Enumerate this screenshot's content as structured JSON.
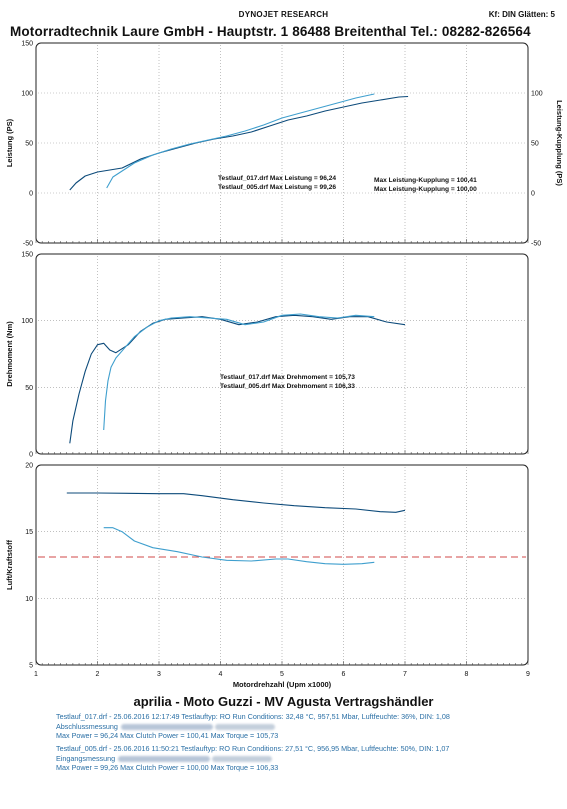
{
  "header": {
    "title": "DYNOJET RESEARCH",
    "right": "Kf: DIN  Glätten: 5",
    "company": "Motorradtechnik Laure GmbH - Hauptstr. 1  86488 Breitenthal  Tel.: 08282-826564"
  },
  "colors": {
    "run1": "#0c4a7a",
    "run2": "#3f9fce",
    "dashed": "#d24a4a",
    "grid": "#9a9a9a"
  },
  "chart_data": [
    {
      "type": "line",
      "ylabel": "Leistung (PS)",
      "ylabel_right": "Leistung-Kupplung (PS)",
      "ylim": [
        -50,
        150
      ],
      "ylim_right": [
        -50,
        150
      ],
      "yticks": [
        "-50",
        "0",
        "50",
        "100",
        "150"
      ],
      "yticks_right": [
        "-50",
        "0",
        "50",
        "100"
      ],
      "xlim": [
        1,
        9
      ],
      "annotations": [
        "Testlauf_017.drf Max Leistung = 96,24",
        "Testlauf_005.drf Max Leistung = 99,26",
        "Max Leistung-Kupplung = 100,41",
        "Max Leistung-Kupplung = 100,00"
      ],
      "series": [
        {
          "name": "Testlauf_017.drf",
          "x": [
            1.55,
            1.65,
            1.8,
            2.0,
            2.2,
            2.4,
            2.7,
            3.0,
            3.3,
            3.6,
            3.9,
            4.2,
            4.5,
            4.8,
            5.1,
            5.4,
            5.7,
            6.0,
            6.3,
            6.6,
            6.9,
            7.05
          ],
          "y": [
            3,
            10,
            17,
            21,
            23,
            25,
            34,
            40,
            45,
            50,
            54,
            57,
            61,
            67,
            73,
            77,
            82,
            86,
            90,
            93,
            96,
            96.5
          ]
        },
        {
          "name": "Testlauf_005.drf",
          "x": [
            2.15,
            2.25,
            2.4,
            2.6,
            2.9,
            3.2,
            3.5,
            3.8,
            4.1,
            4.4,
            4.7,
            5.0,
            5.3,
            5.6,
            5.9,
            6.2,
            6.5
          ],
          "y": [
            5,
            16,
            22,
            30,
            38,
            44,
            49,
            53,
            57,
            62,
            68,
            75,
            80,
            85,
            90,
            95,
            99
          ]
        }
      ]
    },
    {
      "type": "line",
      "ylabel": "Drehmoment (Nm)",
      "ylim": [
        0,
        150
      ],
      "yticks": [
        "0",
        "50",
        "100",
        "150"
      ],
      "xlim": [
        1,
        9
      ],
      "annotations": [
        "Testlauf_017.drf Max Drehmoment = 105,73",
        "Testlauf_005.drf Max Drehmoment = 106,33"
      ],
      "series": [
        {
          "name": "Testlauf_017.drf",
          "x": [
            1.55,
            1.6,
            1.7,
            1.8,
            1.9,
            2.0,
            2.1,
            2.2,
            2.3,
            2.5,
            2.7,
            2.9,
            3.1,
            3.4,
            3.7,
            4.0,
            4.3,
            4.6,
            4.9,
            5.2,
            5.5,
            5.8,
            6.1,
            6.4,
            6.7,
            7.0
          ],
          "y": [
            8,
            25,
            45,
            62,
            75,
            82,
            83,
            78,
            76,
            82,
            92,
            98,
            101,
            102,
            103,
            101,
            97,
            99,
            103,
            104,
            103,
            101,
            103,
            103,
            99,
            97
          ]
        },
        {
          "name": "Testlauf_005.drf",
          "x": [
            2.1,
            2.13,
            2.17,
            2.22,
            2.3,
            2.45,
            2.6,
            2.8,
            3.0,
            3.2,
            3.5,
            3.8,
            4.1,
            4.4,
            4.7,
            5.0,
            5.3,
            5.6,
            5.9,
            6.2,
            6.5
          ],
          "y": [
            18,
            40,
            55,
            65,
            72,
            80,
            88,
            95,
            100,
            102,
            103,
            102,
            101,
            97,
            99,
            104,
            105,
            103,
            102,
            104,
            103
          ]
        }
      ]
    },
    {
      "type": "line",
      "ylabel": "Luft/Kraftstoff",
      "xlabel": "Motordrehzahl (Upm x1000)",
      "ylim": [
        5,
        20
      ],
      "yticks": [
        "5",
        "10",
        "15",
        "20"
      ],
      "xlim": [
        1,
        9
      ],
      "xticks": [
        "1",
        "2",
        "3",
        "4",
        "5",
        "6",
        "7",
        "8",
        "9"
      ],
      "reference_line": 13.1,
      "series": [
        {
          "name": "Testlauf_017.drf",
          "x": [
            1.5,
            2.0,
            3.0,
            3.4,
            3.7,
            4.2,
            4.7,
            5.2,
            5.7,
            6.2,
            6.6,
            6.85,
            7.0
          ],
          "y": [
            17.9,
            17.9,
            17.85,
            17.85,
            17.7,
            17.4,
            17.15,
            16.95,
            16.8,
            16.7,
            16.5,
            16.45,
            16.6
          ]
        },
        {
          "name": "Testlauf_005.drf",
          "x": [
            2.1,
            2.25,
            2.4,
            2.6,
            2.9,
            3.3,
            3.7,
            4.1,
            4.5,
            4.9,
            5.1,
            5.4,
            5.7,
            6.0,
            6.3,
            6.5
          ],
          "y": [
            15.3,
            15.3,
            15.0,
            14.3,
            13.8,
            13.5,
            13.1,
            12.85,
            12.8,
            12.95,
            12.95,
            12.75,
            12.6,
            12.55,
            12.6,
            12.7
          ]
        }
      ]
    }
  ],
  "dealer": "aprilia - Moto Guzzi - MV Agusta Vertragshändler",
  "runs": [
    {
      "line1": "Testlauf_017.drf - 25.06.2016 12:17:49  Testlauftyp: RO  Run Conditions: 32,48 °C, 957,51 Mbar,  Luftfeuchte: 36%, DIN: 1,08",
      "line2": "Abschlussmessung",
      "line3": "Max Power = 96,24  Max Clutch Power = 100,41  Max Torque = 105,73"
    },
    {
      "line1": "Testlauf_005.drf - 25.06.2016 11:50:21  Testlauftyp: RO  Run Conditions: 27,51 °C, 956,95 Mbar,  Luftfeuchte: 50%, DIN: 1,07",
      "line2": "Eingangsmessung",
      "line3": "Max Power = 99,26  Max Clutch Power = 100,00  Max Torque = 106,33"
    }
  ]
}
